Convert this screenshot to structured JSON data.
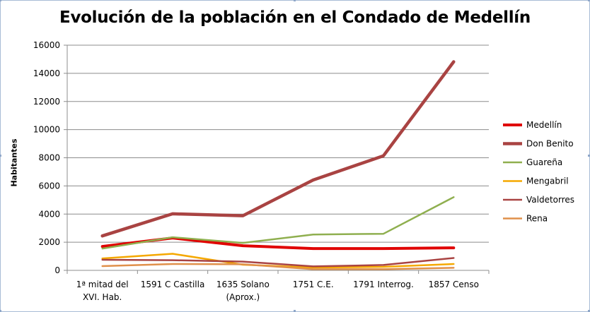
{
  "chart_data": {
    "type": "line",
    "title": "Evolución de la población en el Condado de Medellín",
    "xlabel": "",
    "ylabel": "Habitantes",
    "ylim": [
      0,
      16000
    ],
    "yticks": [
      "0",
      "2000",
      "4000",
      "6000",
      "8000",
      "10000",
      "12000",
      "14000",
      "16000"
    ],
    "categories": [
      [
        "1ª mitad del",
        "XVI. Hab."
      ],
      [
        "1591 C Castilla"
      ],
      [
        "1635 Solano",
        "(Aprox.)"
      ],
      [
        "1751 C.E."
      ],
      [
        "1791 Interrog."
      ],
      [
        "1857 Censo"
      ]
    ],
    "grid": true,
    "legend_position": "right",
    "series": [
      {
        "name": "Medellín",
        "color": "#e00000",
        "width": 4,
        "values": [
          1700,
          2300,
          1750,
          1550,
          1550,
          1600
        ]
      },
      {
        "name": "Don Benito",
        "color": "#a94342",
        "width": 4.5,
        "values": [
          2450,
          4020,
          3880,
          6420,
          8140,
          14820
        ]
      },
      {
        "name": "Guareña",
        "color": "#8faf4f",
        "width": 2.5,
        "values": [
          1550,
          2350,
          1950,
          2550,
          2600,
          5200
        ]
      },
      {
        "name": "Mengabril",
        "color": "#f5a800",
        "width": 2.5,
        "values": [
          850,
          1180,
          400,
          200,
          250,
          450
        ]
      },
      {
        "name": "Valdetorres",
        "color": "#a94342",
        "width": 2.5,
        "values": [
          750,
          720,
          620,
          280,
          380,
          880
        ]
      },
      {
        "name": "Rena",
        "color": "#e0904a",
        "width": 2.5,
        "values": [
          300,
          450,
          430,
          80,
          80,
          180
        ]
      }
    ]
  }
}
